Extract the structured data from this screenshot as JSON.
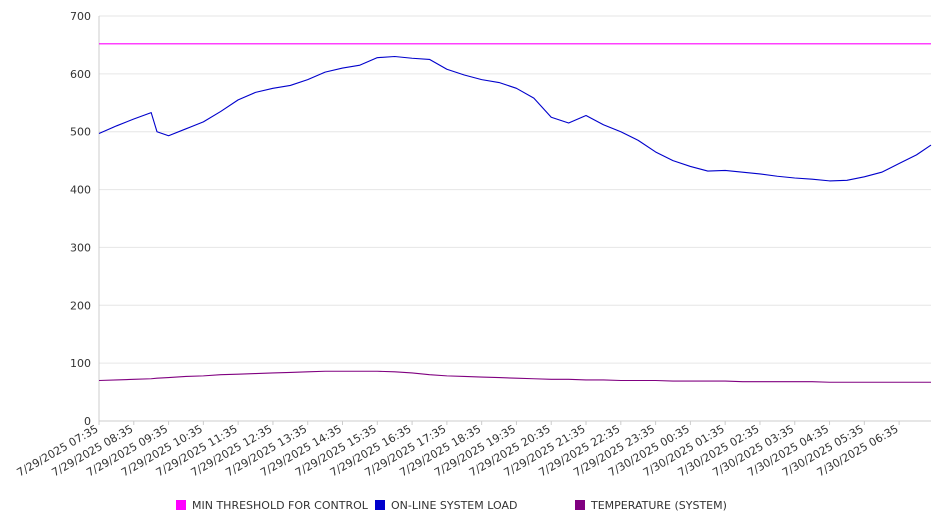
{
  "chart_data": {
    "type": "line",
    "title": "",
    "xlabel": "",
    "ylabel": "",
    "ylim": [
      0,
      700
    ],
    "yticks": [
      0,
      100,
      200,
      300,
      400,
      500,
      600,
      700
    ],
    "grid": true,
    "legend_position": "bottom",
    "x_tick_labels": [
      "7/29/2025 07:35",
      "7/29/2025 08:35",
      "7/29/2025 09:35",
      "7/29/2025 10:35",
      "7/29/2025 11:35",
      "7/29/2025 12:35",
      "7/29/2025 13:35",
      "7/29/2025 14:35",
      "7/29/2025 15:35",
      "7/29/2025 16:35",
      "7/29/2025 17:35",
      "7/29/2025 18:35",
      "7/29/2025 19:35",
      "7/29/2025 20:35",
      "7/29/2025 21:35",
      "7/29/2025 22:35",
      "7/29/2025 23:35",
      "7/30/2025 00:35",
      "7/30/2025 01:35",
      "7/30/2025 02:35",
      "7/30/2025 03:35",
      "7/30/2025 04:35",
      "7/30/2025 05:35",
      "7/30/2025 06:35"
    ],
    "x": [
      "7/29/2025 07:35",
      "7/29/2025 08:05",
      "7/29/2025 08:35",
      "7/29/2025 09:05",
      "7/29/2025 09:15",
      "7/29/2025 09:35",
      "7/29/2025 10:05",
      "7/29/2025 10:35",
      "7/29/2025 11:05",
      "7/29/2025 11:35",
      "7/29/2025 12:05",
      "7/29/2025 12:35",
      "7/29/2025 13:05",
      "7/29/2025 13:35",
      "7/29/2025 14:05",
      "7/29/2025 14:35",
      "7/29/2025 15:05",
      "7/29/2025 15:35",
      "7/29/2025 16:05",
      "7/29/2025 16:35",
      "7/29/2025 17:05",
      "7/29/2025 17:35",
      "7/29/2025 18:05",
      "7/29/2025 18:35",
      "7/29/2025 19:05",
      "7/29/2025 19:35",
      "7/29/2025 20:05",
      "7/29/2025 20:35",
      "7/29/2025 21:05",
      "7/29/2025 21:35",
      "7/29/2025 22:05",
      "7/29/2025 22:35",
      "7/29/2025 23:05",
      "7/29/2025 23:35",
      "7/30/2025 00:05",
      "7/30/2025 00:35",
      "7/30/2025 01:05",
      "7/30/2025 01:35",
      "7/30/2025 02:05",
      "7/30/2025 02:35",
      "7/30/2025 03:05",
      "7/30/2025 03:35",
      "7/30/2025 04:05",
      "7/30/2025 04:35",
      "7/30/2025 05:05",
      "7/30/2025 05:35",
      "7/30/2025 06:05",
      "7/30/2025 06:35",
      "7/30/2025 07:05",
      "7/30/2025 07:30"
    ],
    "series": [
      {
        "name": "MIN THRESHOLD FOR CONTROL",
        "color": "#ff00ff",
        "values": [
          652,
          652,
          652,
          652,
          652,
          652,
          652,
          652,
          652,
          652,
          652,
          652,
          652,
          652,
          652,
          652,
          652,
          652,
          652,
          652,
          652,
          652,
          652,
          652,
          652,
          652,
          652,
          652,
          652,
          652,
          652,
          652,
          652,
          652,
          652,
          652,
          652,
          652,
          652,
          652,
          652,
          652,
          652,
          652,
          652,
          652,
          652,
          652,
          652,
          652
        ]
      },
      {
        "name": "ON-LINE SYSTEM LOAD",
        "color": "#0000cc",
        "values": [
          497,
          510,
          522,
          533,
          500,
          493,
          505,
          517,
          535,
          555,
          568,
          575,
          580,
          590,
          603,
          610,
          615,
          628,
          630,
          627,
          625,
          608,
          598,
          590,
          585,
          575,
          558,
          525,
          515,
          528,
          512,
          500,
          485,
          465,
          450,
          440,
          432,
          433,
          430,
          427,
          423,
          420,
          418,
          415,
          416,
          422,
          430,
          445,
          460,
          477
        ]
      },
      {
        "name": "TEMPERATURE (SYSTEM)",
        "color": "#800080",
        "values": [
          70,
          71,
          72,
          73,
          74,
          75,
          77,
          78,
          80,
          81,
          82,
          83,
          84,
          85,
          86,
          86,
          86,
          86,
          85,
          83,
          80,
          78,
          77,
          76,
          75,
          74,
          73,
          72,
          72,
          71,
          71,
          70,
          70,
          70,
          69,
          69,
          69,
          69,
          68,
          68,
          68,
          68,
          68,
          67,
          67,
          67,
          67,
          67,
          67,
          67
        ]
      }
    ]
  }
}
